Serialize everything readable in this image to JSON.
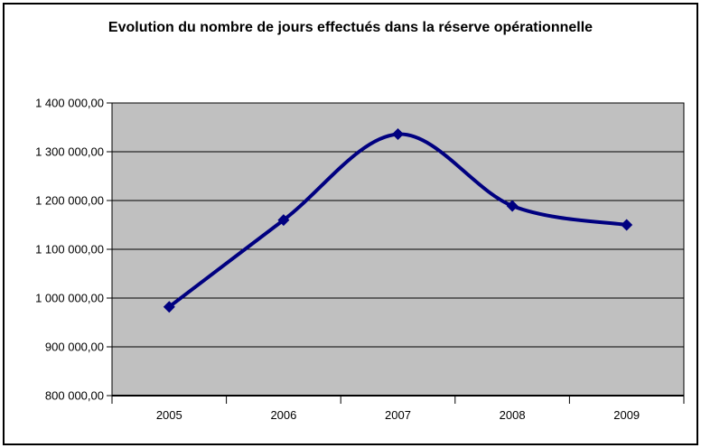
{
  "chart_data": {
    "type": "line",
    "title": "Evolution du nombre de jours effectués dans la réserve opérationnelle",
    "categories": [
      "2005",
      "2006",
      "2007",
      "2008",
      "2009"
    ],
    "values": [
      982000,
      1160000,
      1336000,
      1189000,
      1150000
    ],
    "xlabel": "",
    "ylabel": "",
    "ylim": [
      800000,
      1400000
    ],
    "ytick_step": 100000,
    "ytick_labels": [
      "800 000,00",
      "900 000,00",
      "1 000 000,00",
      "1 100 000,00",
      "1 200 000,00",
      "1 300 000,00",
      "1 400 000,00"
    ],
    "grid": true,
    "legend": "none",
    "line_smoothed": true,
    "marker": "diamond",
    "colors": {
      "line": "#000080",
      "marker": "#000080",
      "plot_background": "#C0C0C0",
      "gridline": "#000000",
      "axis": "#000000",
      "text": "#000000",
      "chart_background": "#FFFFFF",
      "border": "#000000"
    }
  }
}
